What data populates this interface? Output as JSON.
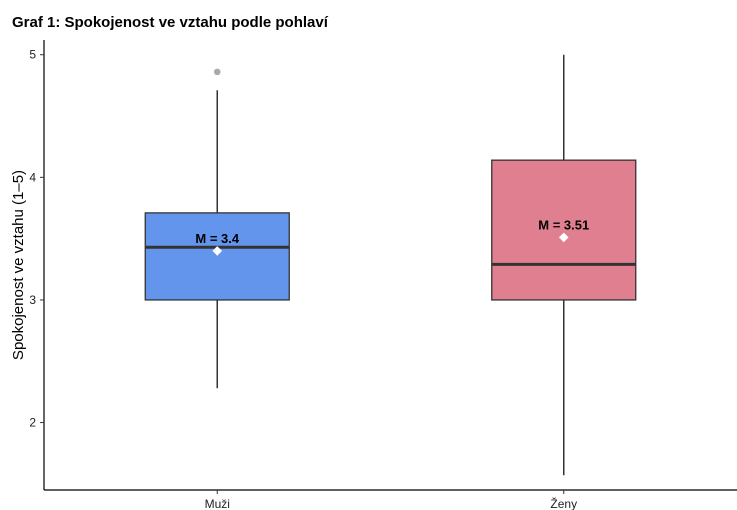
{
  "chart_data": {
    "type": "boxplot",
    "title": "Graf 1: Spokojenost ve vztahu podle pohlaví",
    "xlabel": "",
    "ylabel": "Spokojenost ve vztahu (1–5)",
    "ylim": [
      1.45,
      5.12
    ],
    "yticks": [
      2,
      3,
      4,
      5
    ],
    "grid": false,
    "legend": "none",
    "categories": [
      "Muži",
      "Ženy"
    ],
    "boxes": [
      {
        "category": "Muži",
        "min": 2.28,
        "q1": 3.0,
        "median": 3.43,
        "q3": 3.71,
        "max": 4.71,
        "mean": 3.4,
        "mean_label": "M = 3.4",
        "outliers": [
          4.86
        ],
        "color": "#6495ED"
      },
      {
        "category": "Ženy",
        "min": 1.57,
        "q1": 3.0,
        "median": 3.29,
        "q3": 4.14,
        "max": 5.0,
        "mean": 3.51,
        "mean_label": "M = 3.51",
        "outliers": [],
        "color": "#E07F90"
      }
    ]
  }
}
